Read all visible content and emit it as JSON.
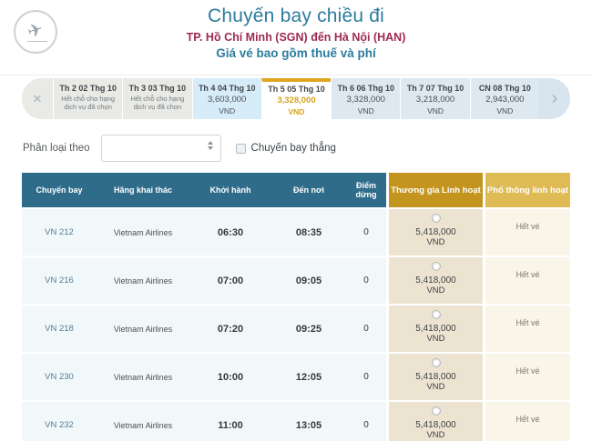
{
  "header": {
    "title": "Chuyến bay chiều đi",
    "route": "TP. Hồ Chí Minh (SGN)  đến Hà Nội (HAN)",
    "note": "Giá vé bao gồm thuế và phí"
  },
  "icons": {
    "plane": "✈",
    "close": "×",
    "chevron_right": "›"
  },
  "date_tabs": {
    "tabs": [
      {
        "date": "Th 2 02 Thg 10",
        "info": "Hết chỗ cho hạng dịch vụ đã chọn",
        "price": "",
        "currency": "",
        "state": "soldout"
      },
      {
        "date": "Th 3 03 Thg 10",
        "info": "Hết chỗ cho hạng dịch vụ đã chọn",
        "price": "",
        "currency": "",
        "state": "soldout"
      },
      {
        "date": "Th 4 04 Thg 10",
        "info": "",
        "price": "3,603,000",
        "currency": "VND",
        "state": "highlight"
      },
      {
        "date": "Th 5 05 Thg 10",
        "info": "",
        "price": "3,328,000",
        "currency": "VND",
        "state": "selected"
      },
      {
        "date": "Th 6 06 Thg 10",
        "info": "",
        "price": "3,328,000",
        "currency": "VND",
        "state": "normal"
      },
      {
        "date": "Th 7 07 Thg 10",
        "info": "",
        "price": "3,218,000",
        "currency": "VND",
        "state": "normal"
      },
      {
        "date": "CN 08 Thg 10",
        "info": "",
        "price": "2,943,000",
        "currency": "VND",
        "state": "normal"
      }
    ]
  },
  "filter": {
    "sort_label": "Phân loại theo",
    "sort_value": "",
    "direct_label": "Chuyến bay thẳng",
    "direct_checked": false
  },
  "table": {
    "columns": {
      "flight": "Chuyến bay",
      "carrier": "Hãng khai thác",
      "depart": "Khởi hành",
      "arrive": "Đến nơi",
      "stops": "Điểm dừng",
      "business": "Thương gia Linh hoạt",
      "economy": "Phổ thông linh hoạt"
    },
    "rows": [
      {
        "flight": "VN 212",
        "carrier": "Vietnam Airlines",
        "depart": "06:30",
        "arrive": "08:35",
        "stops": "0",
        "business_price": "5,418,000",
        "business_currency": "VND",
        "economy": "Hết vé"
      },
      {
        "flight": "VN 216",
        "carrier": "Vietnam Airlines",
        "depart": "07:00",
        "arrive": "09:05",
        "stops": "0",
        "business_price": "5,418,000",
        "business_currency": "VND",
        "economy": "Hết vé"
      },
      {
        "flight": "VN 218",
        "carrier": "Vietnam Airlines",
        "depart": "07:20",
        "arrive": "09:25",
        "stops": "0",
        "business_price": "5,418,000",
        "business_currency": "VND",
        "economy": "Hết vé"
      },
      {
        "flight": "VN 230",
        "carrier": "Vietnam Airlines",
        "depart": "10:00",
        "arrive": "12:05",
        "stops": "0",
        "business_price": "5,418,000",
        "business_currency": "VND",
        "economy": "Hết vé"
      },
      {
        "flight": "VN 232",
        "carrier": "Vietnam Airlines",
        "depart": "11:00",
        "arrive": "13:05",
        "stops": "0",
        "business_price": "5,418,000",
        "business_currency": "VND",
        "economy": "Hết vé"
      }
    ]
  },
  "colors": {
    "title_teal": "#2c7c9e",
    "route_maroon": "#9e2a52",
    "table_header_teal": "#2f6c8a",
    "business_gold": "#c3951f",
    "economy_gold": "#dfbb56",
    "selected_tab_gold": "#dfa51e",
    "tab_blue_bg": "#dde8f1",
    "tab_grey_bg": "#e9e9e5",
    "tab_cyan_bg": "#d6ecf8",
    "row_bg": "#f2f8fa",
    "business_cell_bg": "#ece4d0",
    "economy_cell_bg": "#f9f5e8"
  }
}
